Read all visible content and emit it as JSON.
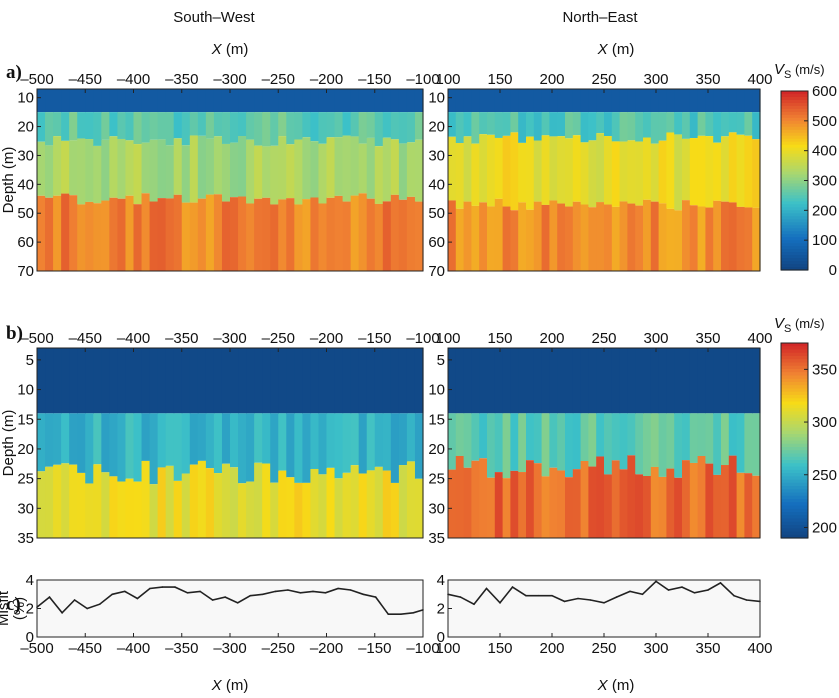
{
  "header": {
    "left": "South–West",
    "right": "North–East"
  },
  "panel_labels": {
    "a": "a)",
    "b": "b)",
    "c": "c)"
  },
  "top_axis": {
    "var": "X",
    "unit": " (m)"
  },
  "bottom_axis": {
    "var": "X",
    "unit": " (m)"
  },
  "colorbar": {
    "var": "V",
    "sub": "S",
    "unit": " (m/s)"
  },
  "chart_data": [
    {
      "id": "a-sw",
      "type": "heatmap",
      "xlim": [
        -500,
        -100
      ],
      "ylim": [
        7,
        70
      ],
      "xticks": [
        "–500",
        "–450",
        "–400",
        "–350",
        "–300",
        "–250",
        "–200",
        "–150",
        "–100"
      ],
      "yticks": [
        "10",
        "20",
        "30",
        "40",
        "50",
        "60",
        "70"
      ],
      "ylabel": "Depth (m)",
      "vlim": [
        0,
        600
      ],
      "layers": [
        {
          "top": 7,
          "bottom": 15,
          "value": 60
        },
        {
          "top": 15,
          "bottom": 25,
          "value": 260
        },
        {
          "top": 25,
          "bottom": 45,
          "value": 330
        },
        {
          "top": 45,
          "bottom": 70,
          "value": 510
        }
      ]
    },
    {
      "id": "a-ne",
      "type": "heatmap",
      "xlim": [
        100,
        400
      ],
      "ylim": [
        7,
        70
      ],
      "xticks": [
        "100",
        "150",
        "200",
        "250",
        "300",
        "350",
        "400"
      ],
      "yticks": [
        "10",
        "20",
        "30",
        "40",
        "50",
        "60",
        "70"
      ],
      "ylabel": "",
      "vlim": [
        0,
        600
      ],
      "layers": [
        {
          "top": 7,
          "bottom": 15,
          "value": 60
        },
        {
          "top": 15,
          "bottom": 24,
          "value": 250
        },
        {
          "top": 24,
          "bottom": 47,
          "value": 405
        },
        {
          "top": 47,
          "bottom": 70,
          "value": 500
        }
      ]
    },
    {
      "id": "b-sw",
      "type": "heatmap",
      "xlim": [
        -500,
        -100
      ],
      "ylim": [
        3,
        35
      ],
      "xticks": [
        "–500",
        "–450",
        "–400",
        "–350",
        "–300",
        "–250",
        "–200",
        "–150",
        "–100"
      ],
      "yticks": [
        "5",
        "10",
        "15",
        "20",
        "25",
        "30",
        "35"
      ],
      "ylabel": "Depth (m)",
      "vlim": [
        190,
        375
      ],
      "layers": [
        {
          "top": 3,
          "bottom": 14,
          "value": 195
        },
        {
          "top": 14,
          "bottom": 24,
          "value": 255
        },
        {
          "top": 24,
          "bottom": 35,
          "value": 315
        }
      ]
    },
    {
      "id": "b-ne",
      "type": "heatmap",
      "xlim": [
        100,
        400
      ],
      "ylim": [
        3,
        35
      ],
      "xticks": [
        "100",
        "150",
        "200",
        "250",
        "300",
        "350",
        "400"
      ],
      "yticks": [
        "5",
        "10",
        "15",
        "20",
        "25",
        "30",
        "35"
      ],
      "ylabel": "",
      "vlim": [
        190,
        375
      ],
      "layers": [
        {
          "top": 3,
          "bottom": 14,
          "value": 195
        },
        {
          "top": 14,
          "bottom": 23,
          "value": 270
        },
        {
          "top": 23,
          "bottom": 35,
          "value": 355
        }
      ]
    },
    {
      "id": "c-sw",
      "type": "line",
      "xlim": [
        -500,
        -100
      ],
      "ylim": [
        0,
        4
      ],
      "xticks": [
        "–500",
        "–450",
        "–400",
        "–350",
        "–300",
        "–250",
        "–200",
        "–150",
        "–100"
      ],
      "yticks": [
        "0",
        "2",
        "4"
      ],
      "ylabel": "Misfit (%)",
      "x": [
        -500,
        -487,
        -474,
        -461,
        -448,
        -435,
        -422,
        -409,
        -396,
        -383,
        -370,
        -357,
        -344,
        -331,
        -318,
        -305,
        -292,
        -279,
        -266,
        -253,
        -240,
        -227,
        -214,
        -201,
        -188,
        -175,
        -162,
        -149,
        -136,
        -123,
        -110,
        -100
      ],
      "y": [
        2.1,
        2.8,
        1.7,
        2.6,
        2.0,
        2.3,
        3.0,
        3.2,
        2.7,
        3.4,
        3.5,
        3.5,
        3.1,
        3.2,
        2.6,
        2.8,
        2.4,
        2.9,
        3.0,
        3.2,
        3.3,
        3.1,
        3.2,
        3.1,
        3.4,
        3.3,
        3.0,
        2.8,
        1.6,
        1.6,
        1.7,
        1.9
      ]
    },
    {
      "id": "c-ne",
      "type": "line",
      "xlim": [
        100,
        400
      ],
      "ylim": [
        0,
        4
      ],
      "xticks": [
        "100",
        "150",
        "200",
        "250",
        "300",
        "350",
        "400"
      ],
      "yticks": [
        "0",
        "2",
        "4"
      ],
      "ylabel": "",
      "x": [
        100,
        112,
        125,
        137,
        150,
        162,
        175,
        187,
        200,
        212,
        225,
        237,
        250,
        262,
        275,
        287,
        300,
        312,
        325,
        337,
        350,
        362,
        375,
        387,
        400
      ],
      "y": [
        3.0,
        2.8,
        2.3,
        3.4,
        2.4,
        3.5,
        2.9,
        2.9,
        2.9,
        2.5,
        2.7,
        2.6,
        2.4,
        2.8,
        3.2,
        3.0,
        3.9,
        3.3,
        3.5,
        3.1,
        3.3,
        3.8,
        2.9,
        2.6,
        2.5
      ]
    }
  ],
  "colorbars": [
    {
      "panel": "a",
      "min": 0,
      "max": 600,
      "ticks": [
        "0",
        "100",
        "200",
        "300",
        "400",
        "500",
        "600"
      ]
    },
    {
      "panel": "b",
      "min": 190,
      "max": 375,
      "ticks": [
        "200",
        "250",
        "300",
        "350"
      ]
    }
  ],
  "colors": {
    "low": "#11427e",
    "mid1": "#3cc1c8",
    "mid2": "#f7db17",
    "high": "#d7312b",
    "line": "#222222",
    "bg": "#f8f8f8"
  }
}
